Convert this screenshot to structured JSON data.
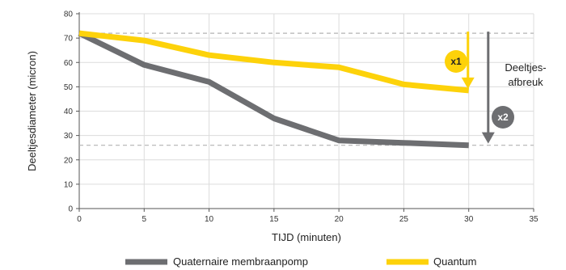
{
  "chart_data": {
    "type": "line",
    "xlabel": "TIJD (minuten)",
    "ylabel": "Deeltjesdiameter (micron)",
    "xlim": [
      0,
      35
    ],
    "ylim": [
      0,
      80
    ],
    "xticks": [
      0,
      5,
      10,
      15,
      20,
      25,
      30,
      35
    ],
    "yticks": [
      0,
      10,
      20,
      30,
      40,
      50,
      60,
      70,
      80
    ],
    "grid": true,
    "legend_position": "bottom",
    "series": [
      {
        "name": "Quaternaire membraanpomp",
        "color": "#6d6e71",
        "x": [
          0,
          5,
          10,
          15,
          20,
          25,
          30
        ],
        "y": [
          72,
          59,
          52,
          37,
          28,
          27,
          26
        ]
      },
      {
        "name": "Quantum",
        "color": "#fdd20a",
        "x": [
          0,
          5,
          10,
          15,
          20,
          25,
          30
        ],
        "y": [
          72,
          69,
          63,
          60,
          58,
          51,
          48.5
        ]
      }
    ],
    "reference_lines": [
      {
        "y": 72,
        "color": "#b3b3b3"
      },
      {
        "y": 26,
        "color": "#b3b3b3"
      }
    ],
    "annotations": {
      "breakdown_label_line1": "Deeltjes-",
      "breakdown_label_line2": "afbreuk",
      "badge_x1": "x1",
      "badge_x2": "x2",
      "x1_arrow": {
        "x": 30,
        "y_from": 72,
        "y_to": 48.5
      },
      "x2_arrow": {
        "x": 31.5,
        "y_from": 72,
        "y_to": 26
      }
    }
  }
}
